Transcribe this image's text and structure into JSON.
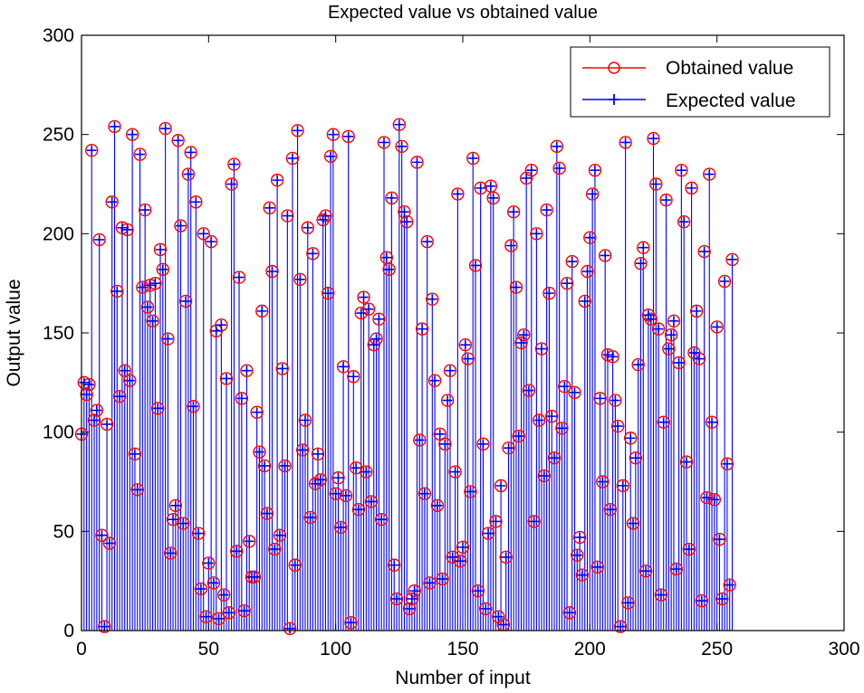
{
  "chart_data": {
    "type": "stem",
    "title": "Expected value vs obtained value",
    "xlabel": "Number of input",
    "ylabel": "Output value",
    "xlim": [
      0,
      300
    ],
    "ylim": [
      0,
      300
    ],
    "xticks": [
      0,
      50,
      100,
      150,
      200,
      250,
      300
    ],
    "yticks": [
      0,
      50,
      100,
      150,
      200,
      250,
      300
    ],
    "grid": false,
    "legend_position": "top-right",
    "series": [
      {
        "name": "Obtained value",
        "color": "#ff0000",
        "marker": "circle",
        "values": [
          99,
          125,
          119,
          124,
          242,
          106,
          111,
          197,
          48,
          2,
          104,
          44,
          216,
          254,
          171,
          118,
          203,
          131,
          202,
          126,
          250,
          89,
          71,
          240,
          173,
          212,
          163,
          174,
          156,
          175,
          112,
          192,
          182,
          253,
          147,
          39,
          56,
          63,
          247,
          204,
          54,
          166,
          230,
          241,
          113,
          216,
          49,
          21,
          200,
          7,
          34,
          196,
          24,
          151,
          6,
          154,
          18,
          127,
          9,
          225,
          235,
          40,
          178,
          117,
          10,
          131,
          45,
          27,
          27,
          110,
          90,
          161,
          83,
          59,
          213,
          181,
          41,
          227,
          48,
          132,
          83,
          209,
          1,
          238,
          33,
          252,
          177,
          91,
          106,
          203,
          57,
          190,
          74,
          89,
          76,
          207,
          209,
          170,
          239,
          250,
          69,
          77,
          52,
          133,
          68,
          249,
          4,
          128,
          82,
          61,
          160,
          168,
          80,
          162,
          65,
          144,
          147,
          157,
          56,
          246,
          188,
          182,
          218,
          33,
          16,
          255,
          244,
          211,
          206,
          11,
          16,
          20,
          236,
          96,
          152,
          69,
          196,
          24,
          167,
          126,
          63,
          99,
          26,
          94,
          116,
          131,
          37,
          80,
          220,
          35,
          42,
          144,
          137,
          70,
          238,
          184,
          20,
          223,
          94,
          11,
          49,
          224,
          218,
          55,
          7,
          73,
          3,
          37,
          92,
          194,
          211,
          173,
          98,
          145,
          149,
          228,
          121,
          232,
          55,
          200,
          106,
          142,
          78,
          212,
          170,
          108,
          87,
          244,
          233,
          102,
          123,
          175,
          9,
          186,
          120,
          38,
          47,
          28,
          166,
          181,
          198,
          220,
          232,
          32,
          117,
          75,
          189,
          139,
          61,
          138,
          116,
          103,
          2,
          73,
          246,
          14,
          97,
          54,
          87,
          134,
          185,
          193,
          30,
          159,
          157,
          248,
          225,
          152,
          18,
          105,
          217,
          142,
          149,
          156,
          31,
          135,
          232,
          206,
          85,
          41,
          223,
          140,
          161,
          137,
          15,
          191,
          67,
          230,
          105,
          66,
          153,
          46,
          16,
          176,
          84,
          23,
          187
        ]
      },
      {
        "name": "Expected value",
        "color": "#0000ff",
        "marker": "plus",
        "values": [
          99,
          125,
          119,
          124,
          242,
          106,
          111,
          197,
          48,
          2,
          104,
          44,
          216,
          254,
          171,
          118,
          203,
          131,
          202,
          126,
          250,
          89,
          71,
          240,
          173,
          212,
          163,
          174,
          156,
          175,
          112,
          192,
          182,
          253,
          147,
          39,
          56,
          63,
          247,
          204,
          54,
          166,
          230,
          241,
          113,
          216,
          49,
          21,
          200,
          7,
          34,
          196,
          24,
          151,
          6,
          154,
          18,
          127,
          9,
          225,
          235,
          40,
          178,
          117,
          10,
          131,
          45,
          27,
          27,
          110,
          90,
          161,
          83,
          59,
          213,
          181,
          41,
          227,
          48,
          132,
          83,
          209,
          1,
          238,
          33,
          252,
          177,
          91,
          106,
          203,
          57,
          190,
          74,
          89,
          76,
          207,
          209,
          170,
          239,
          250,
          69,
          77,
          52,
          133,
          68,
          249,
          4,
          128,
          82,
          61,
          160,
          168,
          80,
          162,
          65,
          144,
          147,
          157,
          56,
          246,
          188,
          182,
          218,
          33,
          16,
          255,
          244,
          211,
          206,
          11,
          16,
          20,
          236,
          96,
          152,
          69,
          196,
          24,
          167,
          126,
          63,
          99,
          26,
          94,
          116,
          131,
          37,
          80,
          220,
          35,
          42,
          144,
          137,
          70,
          238,
          184,
          20,
          223,
          94,
          11,
          49,
          224,
          218,
          55,
          7,
          73,
          3,
          37,
          92,
          194,
          211,
          173,
          98,
          145,
          149,
          228,
          121,
          232,
          55,
          200,
          106,
          142,
          78,
          212,
          170,
          108,
          87,
          244,
          233,
          102,
          123,
          175,
          9,
          186,
          120,
          38,
          47,
          28,
          166,
          181,
          198,
          220,
          232,
          32,
          117,
          75,
          189,
          139,
          61,
          138,
          116,
          103,
          2,
          73,
          246,
          14,
          97,
          54,
          87,
          134,
          185,
          193,
          30,
          159,
          157,
          248,
          225,
          152,
          18,
          105,
          217,
          142,
          149,
          156,
          31,
          135,
          232,
          206,
          85,
          41,
          223,
          140,
          161,
          137,
          15,
          191,
          67,
          230,
          105,
          66,
          153,
          46,
          16,
          176,
          84,
          23,
          187
        ]
      }
    ]
  }
}
